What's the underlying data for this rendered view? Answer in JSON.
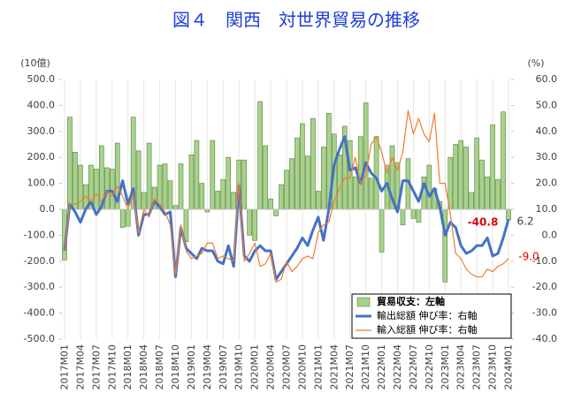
{
  "chart_data": {
    "type": "bar",
    "title": "図４　関西　対世界貿易の推移",
    "y_label": "(10億)",
    "y2_label": "(%)",
    "categories": [
      "2017M01",
      null,
      null,
      "2017M04",
      null,
      null,
      "2017M07",
      null,
      null,
      "2017M10",
      null,
      null,
      "2018M01",
      null,
      null,
      "2018M04",
      null,
      null,
      "2018M07",
      null,
      null,
      "2018M10",
      null,
      null,
      "2019M01",
      null,
      null,
      "2019M04",
      null,
      null,
      "2019M07",
      null,
      null,
      "2019M10",
      null,
      null,
      "2020M01",
      null,
      null,
      "2020M04",
      null,
      null,
      "2020M07",
      null,
      null,
      "2020M10",
      null,
      null,
      "2021M01",
      null,
      null,
      "2021M04",
      null,
      null,
      "2021M07",
      null,
      null,
      "2021M10",
      null,
      null,
      "2022M01",
      null,
      null,
      "2022M04",
      null,
      null,
      "2022M07",
      null,
      null,
      "2022M10",
      null,
      null,
      "2023M01",
      null,
      null,
      "2023M04",
      null,
      null,
      "2023M07",
      null,
      null,
      "2023M10",
      null,
      null,
      "2024M01"
    ],
    "ylim": [
      -500,
      500
    ],
    "yticks": [
      {
        "value": -500,
        "label": "-500.0"
      },
      {
        "value": -400,
        "label": "-400.0"
      },
      {
        "value": -300,
        "label": "-300.0"
      },
      {
        "value": -200,
        "label": "-200.0"
      },
      {
        "value": -100,
        "label": "-100.0"
      },
      {
        "value": 0,
        "label": "0.0"
      },
      {
        "value": 100,
        "label": "100.0"
      },
      {
        "value": 200,
        "label": "200.0"
      },
      {
        "value": 300,
        "label": "300.0"
      },
      {
        "value": 400,
        "label": "400.0"
      },
      {
        "value": 500,
        "label": "500.0"
      }
    ],
    "y2lim": [
      -40,
      60
    ],
    "y2ticks": [
      {
        "value": -40,
        "label": "-40.0"
      },
      {
        "value": -30,
        "label": "-30.0"
      },
      {
        "value": -20,
        "label": "-20.0"
      },
      {
        "value": -10,
        "label": "-10.0"
      },
      {
        "value": 0,
        "label": "0.0"
      },
      {
        "value": 10,
        "label": "10.0"
      },
      {
        "value": 20,
        "label": "20.0"
      },
      {
        "value": 30,
        "label": "30.0"
      },
      {
        "value": 40,
        "label": "40.0"
      },
      {
        "value": 50,
        "label": "50.0"
      },
      {
        "value": 60,
        "label": "60.0"
      }
    ],
    "legend": "lower right",
    "series": [
      {
        "name": "貿易収支：左軸",
        "type": "bar",
        "axis": "y",
        "color": "#a9d18e",
        "values": [
          -195,
          355,
          220,
          170,
          95,
          170,
          155,
          245,
          160,
          155,
          255,
          -70,
          -65,
          355,
          225,
          65,
          255,
          85,
          170,
          175,
          110,
          15,
          175,
          -125,
          210,
          265,
          100,
          -10,
          265,
          70,
          115,
          200,
          65,
          190,
          190,
          -100,
          -120,
          415,
          245,
          40,
          -25,
          95,
          150,
          195,
          275,
          330,
          205,
          350,
          70,
          240,
          370,
          290,
          210,
          320,
          265,
          125,
          280,
          410,
          120,
          280,
          -165,
          170,
          245,
          180,
          -60,
          195,
          -35,
          -50,
          125,
          170,
          80,
          30,
          -280,
          200,
          250,
          265,
          240,
          65,
          275,
          190,
          125,
          325,
          115,
          375,
          -40.8
        ],
        "value_labels": [
          null,
          null,
          null,
          null,
          null,
          null,
          null,
          null,
          null,
          null,
          null,
          null,
          null,
          null,
          null,
          null,
          null,
          null,
          null,
          null,
          null,
          null,
          null,
          null,
          null,
          null,
          null,
          null,
          null,
          null,
          null,
          null,
          null,
          null,
          null,
          null,
          null,
          null,
          null,
          null,
          null,
          null,
          null,
          null,
          null,
          null,
          null,
          null,
          null,
          null,
          null,
          null,
          null,
          null,
          null,
          null,
          null,
          null,
          null,
          null,
          null,
          null,
          null,
          null,
          null,
          null,
          null,
          null,
          null,
          null,
          null,
          null,
          null,
          null,
          null,
          null,
          null,
          null,
          null,
          null,
          null,
          null,
          null,
          null,
          "-40.8"
        ]
      },
      {
        "name": "輸出総額 伸び率：右軸",
        "type": "line",
        "axis": "y2",
        "color": "#4472c4",
        "values": [
          -6,
          12,
          9,
          5,
          10,
          13,
          8,
          11,
          17,
          17,
          13,
          21,
          12,
          18,
          0,
          8,
          8,
          13,
          11,
          8,
          9,
          -16,
          3,
          -5,
          -7,
          -9,
          -5,
          -6,
          -6,
          -10,
          -11,
          -4,
          -12,
          19,
          -8,
          -10,
          -6,
          -4,
          -6,
          -6,
          -17,
          -14,
          -11,
          -8,
          -5,
          -1,
          -4,
          2,
          7,
          -2,
          10,
          27,
          33,
          38,
          25,
          26,
          20,
          28,
          24,
          22,
          17,
          20,
          14,
          9,
          21,
          21,
          17,
          13,
          20,
          15,
          18,
          11,
          0,
          5,
          3,
          -4,
          -7,
          -6,
          -4,
          -4,
          -1,
          -8,
          -7,
          -1,
          6.2
        ],
        "value_labels": [
          null,
          null,
          null,
          null,
          null,
          null,
          null,
          null,
          null,
          null,
          null,
          null,
          null,
          null,
          null,
          null,
          null,
          null,
          null,
          null,
          null,
          null,
          null,
          null,
          null,
          null,
          null,
          null,
          null,
          null,
          null,
          null,
          null,
          null,
          null,
          null,
          null,
          null,
          null,
          null,
          null,
          null,
          null,
          null,
          null,
          null,
          null,
          null,
          null,
          null,
          null,
          null,
          null,
          null,
          null,
          null,
          null,
          null,
          null,
          null,
          null,
          null,
          null,
          null,
          null,
          null,
          null,
          null,
          null,
          null,
          null,
          null,
          null,
          null,
          null,
          null,
          null,
          null,
          null,
          null,
          null,
          null,
          null,
          null,
          "6.2"
        ]
      },
      {
        "name": "輸入総額 伸び率：右軸",
        "type": "line",
        "axis": "y2",
        "color": "#ed7d31",
        "values": [
          -6,
          12,
          12,
          13,
          15,
          13,
          16,
          13,
          17,
          15,
          19,
          15,
          10,
          16,
          1,
          10,
          7,
          14,
          12,
          9,
          4,
          -15,
          4,
          -6,
          -9,
          -8,
          -7,
          -3,
          -3,
          -9,
          -8,
          -9,
          -10,
          20,
          -10,
          -7,
          -3,
          -12,
          -11,
          -7,
          -18,
          -17,
          -10,
          -14,
          -12,
          -9,
          -8,
          -9,
          1,
          4,
          5,
          13,
          18,
          22,
          22,
          30,
          20,
          23,
          35,
          38,
          32,
          24,
          30,
          25,
          32,
          48,
          39,
          45,
          39,
          36,
          47,
          20,
          20,
          8,
          -7,
          -9,
          -13,
          -15,
          -16,
          -16,
          -13,
          -14,
          -12,
          -11,
          -9.0
        ],
        "value_labels": [
          null,
          null,
          null,
          null,
          null,
          null,
          null,
          null,
          null,
          null,
          null,
          null,
          null,
          null,
          null,
          null,
          null,
          null,
          null,
          null,
          null,
          null,
          null,
          null,
          null,
          null,
          null,
          null,
          null,
          null,
          null,
          null,
          null,
          null,
          null,
          null,
          null,
          null,
          null,
          null,
          null,
          null,
          null,
          null,
          null,
          null,
          null,
          null,
          null,
          null,
          null,
          null,
          null,
          null,
          null,
          null,
          null,
          null,
          null,
          null,
          null,
          null,
          null,
          null,
          null,
          null,
          null,
          null,
          null,
          null,
          null,
          null,
          null,
          null,
          null,
          null,
          null,
          null,
          null,
          null,
          null,
          null,
          null,
          null,
          "-9.0"
        ]
      }
    ]
  }
}
